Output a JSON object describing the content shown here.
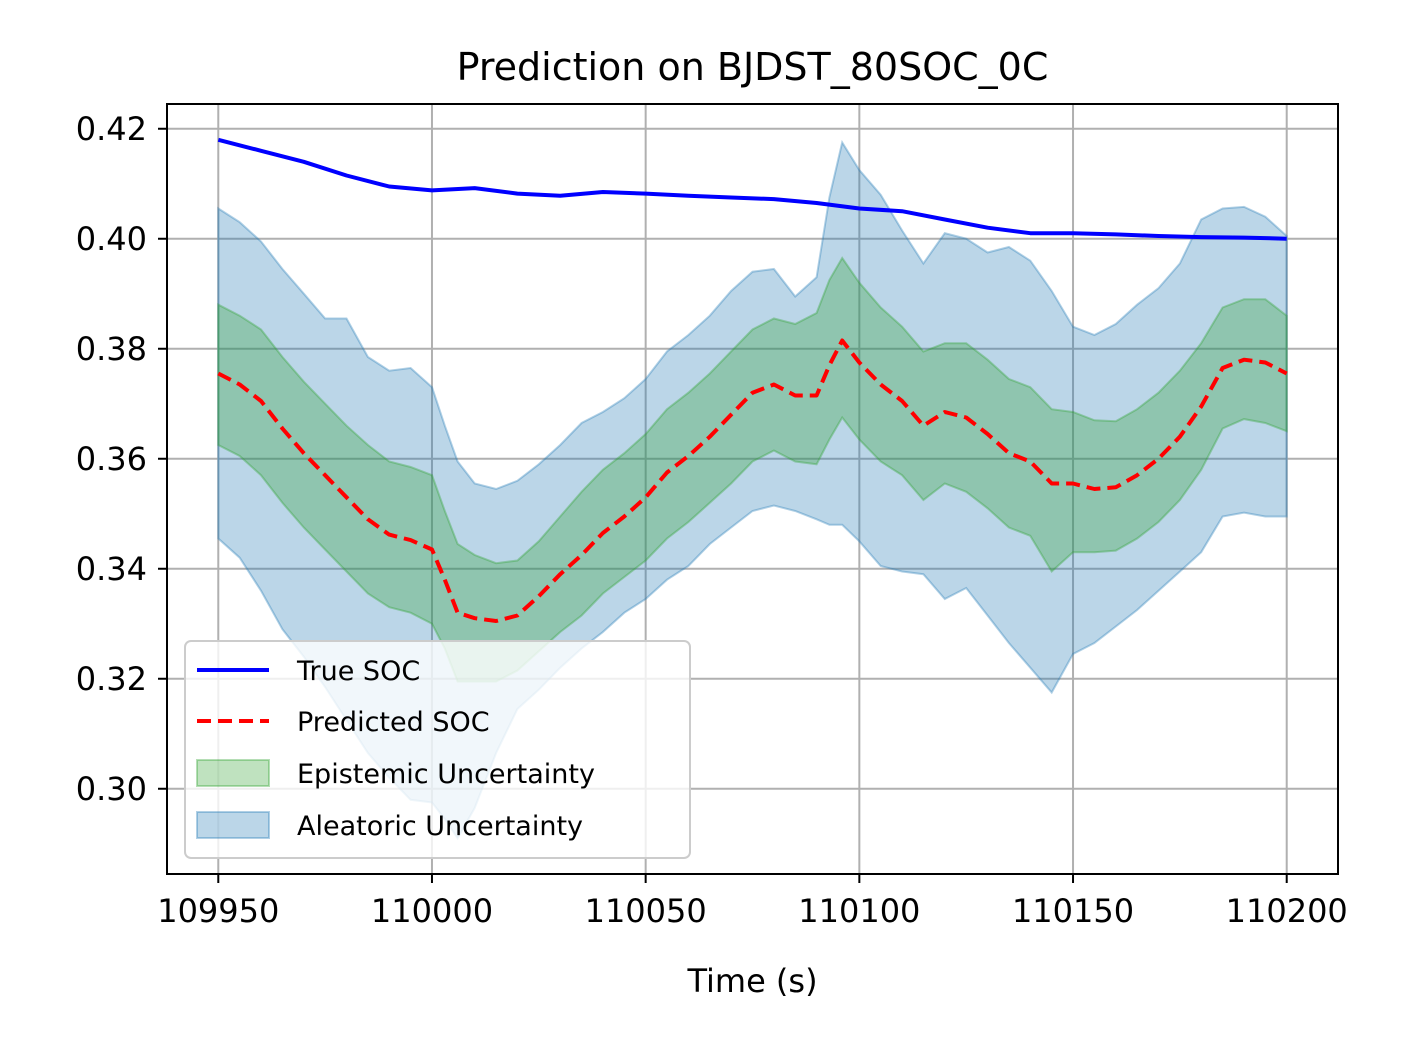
{
  "chart_data": {
    "type": "line",
    "title": "Prediction on BJDST_80SOC_0C",
    "xlabel": "Time (s)",
    "ylabel": "",
    "xlim": [
      109938,
      110212
    ],
    "ylim": [
      0.2845,
      0.4245
    ],
    "xticks": [
      109950,
      110000,
      110050,
      110100,
      110150,
      110200
    ],
    "yticks": [
      0.3,
      0.32,
      0.34,
      0.36,
      0.38,
      0.4,
      0.42
    ],
    "ytick_labels": [
      "0.30",
      "0.32",
      "0.34",
      "0.36",
      "0.38",
      "0.40",
      "0.42"
    ],
    "grid": true,
    "legend_position": "lower-left",
    "legend": [
      "True SOC",
      "Predicted SOC",
      "Epistemic Uncertainty",
      "Aleatoric Uncertainty"
    ],
    "colors": {
      "true": "#0000ff",
      "pred": "#ff0000",
      "epistemic": "#2ca02c",
      "aleatoric": "#1f77b4"
    },
    "series": [
      {
        "name": "True SOC",
        "x": [
          109950,
          109960,
          109970,
          109980,
          109990,
          110000,
          110010,
          110020,
          110030,
          110040,
          110050,
          110060,
          110070,
          110080,
          110090,
          110100,
          110110,
          110120,
          110130,
          110140,
          110150,
          110160,
          110170,
          110180,
          110190,
          110200
        ],
        "values": [
          0.418,
          0.416,
          0.414,
          0.4115,
          0.4095,
          0.4088,
          0.4092,
          0.4082,
          0.4078,
          0.4085,
          0.4082,
          0.4078,
          0.4075,
          0.4072,
          0.4065,
          0.4055,
          0.405,
          0.4035,
          0.402,
          0.401,
          0.401,
          0.4008,
          0.4005,
          0.4003,
          0.4002,
          0.4
        ]
      },
      {
        "name": "Predicted SOC",
        "x": [
          109950,
          109955,
          109960,
          109965,
          109970,
          109975,
          109980,
          109985,
          109990,
          109995,
          110000,
          110003,
          110006,
          110010,
          110015,
          110020,
          110025,
          110030,
          110035,
          110040,
          110045,
          110050,
          110055,
          110060,
          110065,
          110070,
          110075,
          110080,
          110085,
          110090,
          110093,
          110096,
          110100,
          110105,
          110110,
          110115,
          110120,
          110125,
          110130,
          110135,
          110140,
          110145,
          110150,
          110155,
          110160,
          110165,
          110170,
          110175,
          110180,
          110185,
          110190,
          110195,
          110200
        ],
        "values": [
          0.3755,
          0.3735,
          0.3705,
          0.3655,
          0.361,
          0.357,
          0.353,
          0.349,
          0.3462,
          0.3452,
          0.3435,
          0.338,
          0.332,
          0.331,
          0.3305,
          0.3315,
          0.335,
          0.339,
          0.3425,
          0.3465,
          0.3495,
          0.353,
          0.3575,
          0.3605,
          0.364,
          0.368,
          0.372,
          0.3735,
          0.3715,
          0.3715,
          0.377,
          0.3815,
          0.3775,
          0.3735,
          0.3705,
          0.366,
          0.3685,
          0.3675,
          0.3645,
          0.361,
          0.3595,
          0.3555,
          0.3555,
          0.3545,
          0.3548,
          0.357,
          0.36,
          0.364,
          0.3695,
          0.3765,
          0.378,
          0.3775,
          0.3755
        ]
      },
      {
        "name": "Epistemic Uncertainty",
        "x": [
          109950,
          109955,
          109960,
          109965,
          109970,
          109975,
          109980,
          109985,
          109990,
          109995,
          110000,
          110003,
          110006,
          110010,
          110015,
          110020,
          110025,
          110030,
          110035,
          110040,
          110045,
          110050,
          110055,
          110060,
          110065,
          110070,
          110075,
          110080,
          110085,
          110090,
          110093,
          110096,
          110100,
          110105,
          110110,
          110115,
          110120,
          110125,
          110130,
          110135,
          110140,
          110145,
          110150,
          110155,
          110160,
          110165,
          110170,
          110175,
          110180,
          110185,
          110190,
          110195,
          110200
        ],
        "upper": [
          0.388,
          0.386,
          0.3835,
          0.3785,
          0.374,
          0.37,
          0.366,
          0.3625,
          0.3595,
          0.3585,
          0.357,
          0.3505,
          0.3445,
          0.3425,
          0.341,
          0.3415,
          0.345,
          0.3495,
          0.354,
          0.358,
          0.361,
          0.3645,
          0.369,
          0.372,
          0.3755,
          0.3795,
          0.3835,
          0.3855,
          0.3845,
          0.3865,
          0.3925,
          0.3965,
          0.392,
          0.3875,
          0.384,
          0.3795,
          0.381,
          0.381,
          0.378,
          0.3745,
          0.373,
          0.369,
          0.3685,
          0.367,
          0.3668,
          0.369,
          0.372,
          0.376,
          0.381,
          0.3875,
          0.389,
          0.389,
          0.386
        ],
        "lower": [
          0.3625,
          0.3605,
          0.357,
          0.352,
          0.3475,
          0.3435,
          0.3395,
          0.3355,
          0.333,
          0.332,
          0.33,
          0.3255,
          0.3195,
          0.3195,
          0.3195,
          0.3215,
          0.325,
          0.3285,
          0.3315,
          0.3355,
          0.3385,
          0.3415,
          0.3455,
          0.3485,
          0.352,
          0.3555,
          0.3595,
          0.3615,
          0.3595,
          0.359,
          0.3635,
          0.3675,
          0.3635,
          0.3595,
          0.357,
          0.3525,
          0.3555,
          0.354,
          0.351,
          0.3475,
          0.346,
          0.3395,
          0.343,
          0.343,
          0.3433,
          0.3455,
          0.3485,
          0.3525,
          0.358,
          0.3655,
          0.3672,
          0.3665,
          0.365
        ]
      },
      {
        "name": "Aleatoric Uncertainty",
        "x": [
          109950,
          109955,
          109960,
          109965,
          109970,
          109975,
          109980,
          109985,
          109990,
          109995,
          110000,
          110003,
          110006,
          110010,
          110015,
          110020,
          110025,
          110030,
          110035,
          110040,
          110045,
          110050,
          110055,
          110060,
          110065,
          110070,
          110075,
          110080,
          110085,
          110090,
          110093,
          110096,
          110100,
          110105,
          110110,
          110115,
          110120,
          110125,
          110130,
          110135,
          110140,
          110145,
          110150,
          110155,
          110160,
          110165,
          110170,
          110175,
          110180,
          110185,
          110190,
          110195,
          110200
        ],
        "upper": [
          0.4055,
          0.403,
          0.3995,
          0.3945,
          0.39,
          0.3855,
          0.3855,
          0.3785,
          0.376,
          0.3765,
          0.373,
          0.366,
          0.3595,
          0.3555,
          0.3545,
          0.356,
          0.359,
          0.3625,
          0.3665,
          0.3685,
          0.371,
          0.3745,
          0.3795,
          0.3825,
          0.386,
          0.3905,
          0.394,
          0.3945,
          0.3895,
          0.393,
          0.4075,
          0.4175,
          0.4125,
          0.408,
          0.4015,
          0.3955,
          0.401,
          0.4,
          0.3975,
          0.3985,
          0.396,
          0.3905,
          0.384,
          0.3825,
          0.3845,
          0.388,
          0.391,
          0.3955,
          0.4035,
          0.4055,
          0.4058,
          0.404,
          0.4005
        ],
        "lower": [
          0.3455,
          0.342,
          0.336,
          0.329,
          0.324,
          0.3185,
          0.3125,
          0.3065,
          0.302,
          0.298,
          0.2975,
          0.2945,
          0.291,
          0.2965,
          0.3065,
          0.3145,
          0.318,
          0.322,
          0.3255,
          0.3285,
          0.332,
          0.3345,
          0.338,
          0.3405,
          0.3445,
          0.3475,
          0.3505,
          0.3515,
          0.3505,
          0.349,
          0.348,
          0.348,
          0.345,
          0.3405,
          0.3395,
          0.339,
          0.3345,
          0.3365,
          0.3315,
          0.3265,
          0.322,
          0.3175,
          0.3245,
          0.3265,
          0.3295,
          0.3325,
          0.336,
          0.3395,
          0.343,
          0.3495,
          0.3502,
          0.3495,
          0.3495
        ]
      }
    ]
  }
}
